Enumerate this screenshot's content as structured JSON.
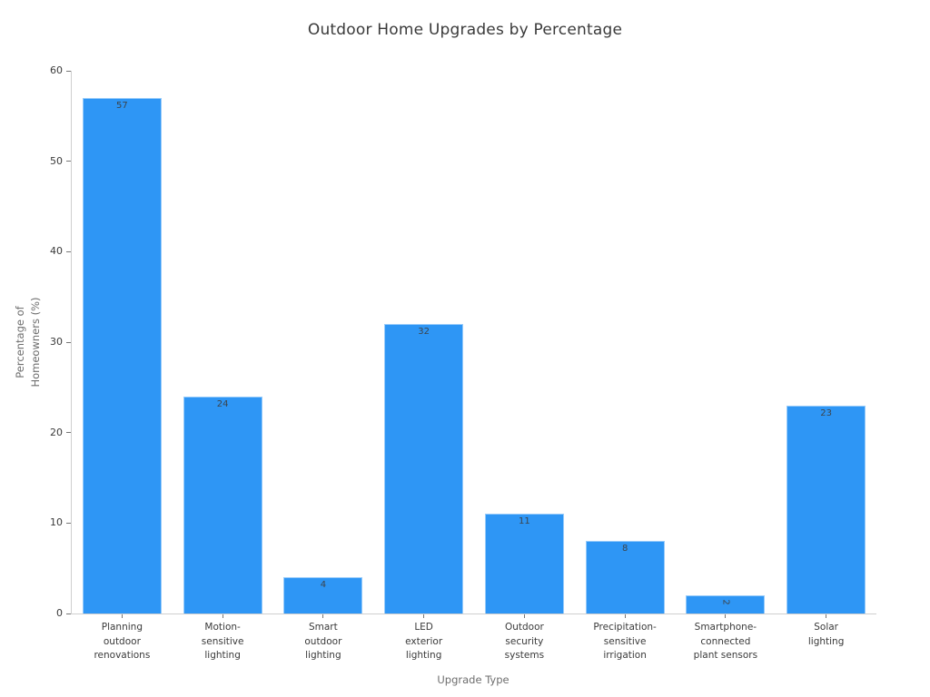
{
  "chart_data": {
    "type": "bar",
    "title": "Outdoor Home Upgrades by Percentage",
    "xlabel": "Upgrade Type",
    "ylabel": "Percentage of Homeowners (%)",
    "ylabel_lines": [
      "Percentage of",
      "Homeowners (%)"
    ],
    "categories": [
      "Planning outdoor renovations",
      "Motion-sensitive lighting",
      "Smart outdoor lighting",
      "LED exterior lighting",
      "Outdoor security systems",
      "Precipitation-sensitive irrigation",
      "Smartphone-connected plant sensors",
      "Solar lighting"
    ],
    "categories_wrapped": [
      [
        "Planning",
        "outdoor",
        "renovations"
      ],
      [
        "Motion-",
        "sensitive",
        "lighting"
      ],
      [
        "Smart",
        "outdoor",
        "lighting"
      ],
      [
        "LED",
        "exterior",
        "lighting"
      ],
      [
        "Outdoor",
        "security",
        "systems"
      ],
      [
        "Precipitation-",
        "sensitive",
        "irrigation"
      ],
      [
        "Smartphone-",
        "connected",
        "plant sensors"
      ],
      [
        "Solar",
        "lighting"
      ]
    ],
    "values": [
      57,
      24,
      4,
      32,
      11,
      8,
      2,
      23
    ],
    "value_labels": [
      "57",
      "24",
      "4",
      "32",
      "11",
      "8",
      "2",
      "23"
    ],
    "value_label_rotation_deg": [
      0,
      0,
      0,
      0,
      0,
      0,
      90,
      0
    ],
    "ylim": [
      0,
      60
    ],
    "yticks": [
      0,
      10,
      20,
      30,
      40,
      50,
      60
    ],
    "grid": false,
    "legend": null,
    "bar_color": "#2e96f5",
    "bar_edge_color": "rgba(255,255,255,0.5)",
    "spine_color": "#cfcfcf",
    "tick_color": "#767676",
    "tick_label_color": "#3a3a3a",
    "value_label_color": "#3c444c",
    "axis_title_color": "#6e6e6e",
    "background_color": "#ffffff"
  }
}
